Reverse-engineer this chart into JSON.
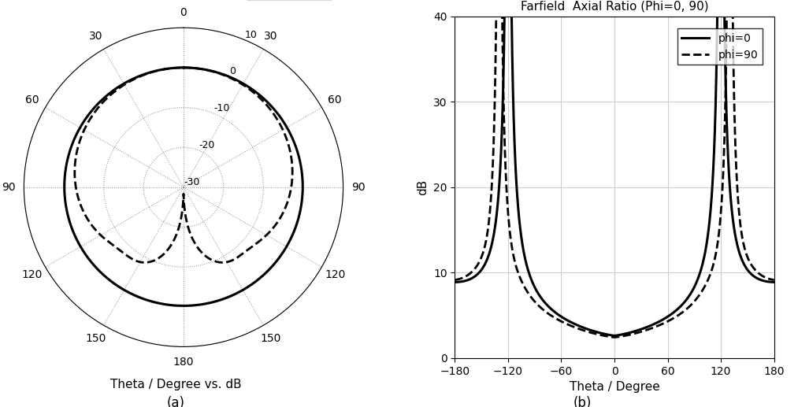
{
  "polar_subtitle": "Theta / Degree vs. dB",
  "polar_rticks": [
    -30,
    -20,
    -10,
    0,
    10
  ],
  "polar_rmax": 10,
  "polar_rmin": -38,
  "legend_phi0": "phi=0",
  "legend_phi90": "phi=90",
  "axial_title": "Farfield  Axial Ratio (Phi=0, 90)",
  "axial_xlabel": "Theta / Degree",
  "axial_ylabel": "dB",
  "axial_xlim": [
    -180,
    180
  ],
  "axial_ylim": [
    0,
    40
  ],
  "axial_xticks": [
    -180,
    -120,
    -60,
    0,
    60,
    120,
    180
  ],
  "axial_yticks": [
    0,
    10,
    20,
    30,
    40
  ],
  "label_a": "(a)",
  "label_b": "(b)",
  "line_color": "#000000",
  "background_color": "#ffffff"
}
